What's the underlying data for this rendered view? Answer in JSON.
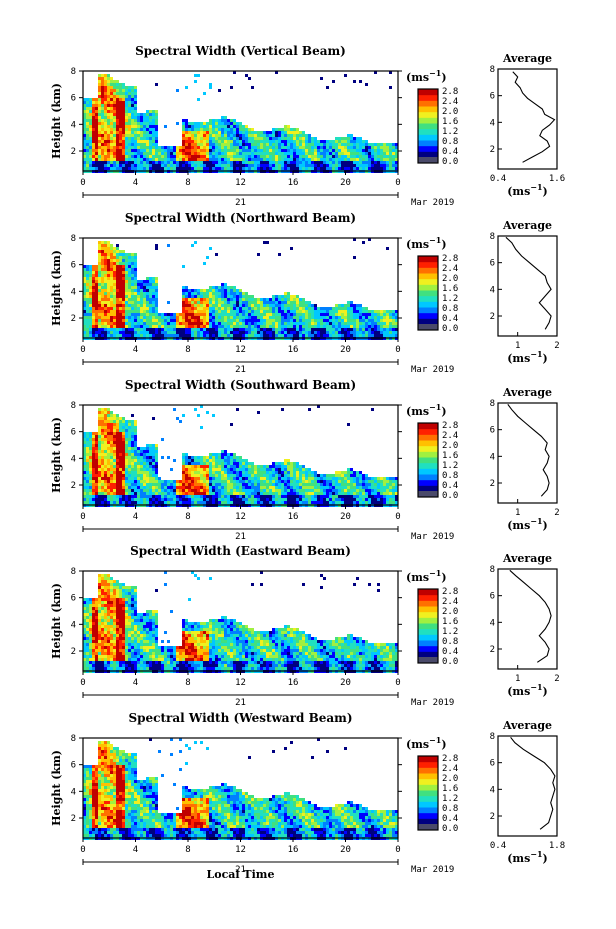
{
  "figure": {
    "xlabel": "Local Time",
    "date_label": "Mar 2019",
    "day_label": "21",
    "ylabel": "Height (km)",
    "colorbar_unit": "(ms",
    "colorbar_unit_exp": "−1",
    "colorbar_unit_close": ")",
    "profile_title": "Average",
    "profile_unit": "(ms",
    "profile_unit_exp": "−1",
    "profile_unit_close": ")",
    "colors": {
      "colormap": [
        "#000080",
        "#0000ff",
        "#0080ff",
        "#00c8ff",
        "#20e0c0",
        "#40e080",
        "#a0f040",
        "#f0f020",
        "#ffc000",
        "#ff7000",
        "#ff2000",
        "#c00000"
      ],
      "colorbar_underflow": "#4a4a6a"
    }
  },
  "chart_data": [
    {
      "type": "heatmap",
      "title": "Spectral Width (Vertical Beam)",
      "xlabel": "Local Time",
      "ylabel": "Height (km)",
      "xlim": [
        0,
        24
      ],
      "ylim": [
        0.5,
        8
      ],
      "xticks": [
        "0",
        "4",
        "8",
        "12",
        "16",
        "20",
        "0"
      ],
      "yticks": [
        "2",
        "4",
        "6",
        "8"
      ],
      "colorbar": {
        "range": [
          0,
          2.8
        ],
        "ticks": [
          "2.8",
          "2.4",
          "2.0",
          "1.6",
          "1.2",
          "0.8",
          "0.4",
          "0.0"
        ]
      },
      "profile": {
        "title": "Average",
        "xlim": [
          0.4,
          1.6
        ],
        "xticks": [
          "0.4",
          "1.6"
        ],
        "yticks": [
          "2",
          "4",
          "6",
          "8"
        ],
        "points": [
          [
            0.9,
            1.0
          ],
          [
            1.1,
            1.4
          ],
          [
            1.3,
            1.8
          ],
          [
            1.45,
            2.2
          ],
          [
            1.4,
            2.6
          ],
          [
            1.25,
            3.0
          ],
          [
            1.3,
            3.4
          ],
          [
            1.45,
            3.8
          ],
          [
            1.55,
            4.2
          ],
          [
            1.35,
            4.6
          ],
          [
            1.3,
            5.0
          ],
          [
            1.15,
            5.4
          ],
          [
            1.0,
            5.8
          ],
          [
            0.9,
            6.2
          ],
          [
            0.85,
            6.6
          ],
          [
            0.75,
            7.0
          ],
          [
            0.8,
            7.4
          ],
          [
            0.7,
            7.8
          ]
        ]
      }
    },
    {
      "type": "heatmap",
      "title": "Spectral Width (Northward Beam)",
      "xlabel": "Local Time",
      "ylabel": "Height (km)",
      "xlim": [
        0,
        24
      ],
      "ylim": [
        0.5,
        8
      ],
      "xticks": [
        "0",
        "4",
        "8",
        "12",
        "16",
        "20",
        "0"
      ],
      "yticks": [
        "2",
        "4",
        "6",
        "8"
      ],
      "colorbar": {
        "range": [
          0,
          2.8
        ],
        "ticks": [
          "2.8",
          "2.4",
          "2.0",
          "1.6",
          "1.2",
          "0.8",
          "0.4",
          "0.0"
        ]
      },
      "profile": {
        "title": "Average",
        "xlim": [
          0.5,
          2.0
        ],
        "xticks": [
          "1",
          "2"
        ],
        "yticks": [
          "2",
          "4",
          "6",
          "8"
        ],
        "points": [
          [
            1.7,
            1.0
          ],
          [
            1.8,
            1.5
          ],
          [
            1.85,
            2.0
          ],
          [
            1.7,
            2.5
          ],
          [
            1.55,
            3.0
          ],
          [
            1.7,
            3.5
          ],
          [
            1.85,
            4.0
          ],
          [
            1.75,
            4.5
          ],
          [
            1.7,
            5.0
          ],
          [
            1.5,
            5.5
          ],
          [
            1.3,
            6.0
          ],
          [
            1.1,
            6.5
          ],
          [
            0.95,
            7.0
          ],
          [
            0.85,
            7.5
          ],
          [
            0.7,
            7.9
          ]
        ]
      }
    },
    {
      "type": "heatmap",
      "title": "Spectral Width (Southward Beam)",
      "xlabel": "Local Time",
      "ylabel": "Height (km)",
      "xlim": [
        0,
        24
      ],
      "ylim": [
        0.5,
        8
      ],
      "xticks": [
        "0",
        "4",
        "8",
        "12",
        "16",
        "20",
        "0"
      ],
      "yticks": [
        "2",
        "4",
        "6",
        "8"
      ],
      "colorbar": {
        "range": [
          0,
          2.8
        ],
        "ticks": [
          "2.8",
          "2.4",
          "2.0",
          "1.6",
          "1.2",
          "0.8",
          "0.4",
          "0.0"
        ]
      },
      "profile": {
        "title": "Average",
        "xlim": [
          0.5,
          2.0
        ],
        "xticks": [
          "1",
          "2"
        ],
        "yticks": [
          "2",
          "4",
          "6",
          "8"
        ],
        "points": [
          [
            1.6,
            1.0
          ],
          [
            1.75,
            1.5
          ],
          [
            1.8,
            2.0
          ],
          [
            1.75,
            2.5
          ],
          [
            1.65,
            3.0
          ],
          [
            1.75,
            3.5
          ],
          [
            1.8,
            4.0
          ],
          [
            1.7,
            4.5
          ],
          [
            1.75,
            5.0
          ],
          [
            1.6,
            5.5
          ],
          [
            1.4,
            6.0
          ],
          [
            1.2,
            6.5
          ],
          [
            1.0,
            7.0
          ],
          [
            0.85,
            7.5
          ],
          [
            0.75,
            7.9
          ]
        ]
      }
    },
    {
      "type": "heatmap",
      "title": "Spectral Width (Eastward Beam)",
      "xlabel": "Local Time",
      "ylabel": "Height (km)",
      "xlim": [
        0,
        24
      ],
      "ylim": [
        0.5,
        8
      ],
      "xticks": [
        "0",
        "4",
        "8",
        "12",
        "16",
        "20",
        "0"
      ],
      "yticks": [
        "2",
        "4",
        "6",
        "8"
      ],
      "colorbar": {
        "range": [
          0,
          2.8
        ],
        "ticks": [
          "2.8",
          "2.4",
          "2.0",
          "1.6",
          "1.2",
          "0.8",
          "0.4",
          "0.0"
        ]
      },
      "profile": {
        "title": "Average",
        "xlim": [
          0.5,
          2.0
        ],
        "xticks": [
          "1",
          "2"
        ],
        "yticks": [
          "2",
          "4",
          "6",
          "8"
        ],
        "points": [
          [
            1.5,
            1.0
          ],
          [
            1.75,
            1.5
          ],
          [
            1.8,
            2.0
          ],
          [
            1.7,
            2.5
          ],
          [
            1.55,
            3.0
          ],
          [
            1.7,
            3.5
          ],
          [
            1.8,
            4.0
          ],
          [
            1.85,
            4.5
          ],
          [
            1.8,
            5.0
          ],
          [
            1.7,
            5.5
          ],
          [
            1.55,
            6.0
          ],
          [
            1.35,
            6.5
          ],
          [
            1.15,
            7.0
          ],
          [
            0.95,
            7.5
          ],
          [
            0.8,
            7.9
          ]
        ]
      }
    },
    {
      "type": "heatmap",
      "title": "Spectral Width (Westward Beam)",
      "xlabel": "Local Time",
      "ylabel": "Height (km)",
      "xlim": [
        0,
        24
      ],
      "ylim": [
        0.5,
        8
      ],
      "xticks": [
        "0",
        "4",
        "8",
        "12",
        "16",
        "20",
        "0"
      ],
      "yticks": [
        "2",
        "4",
        "6",
        "8"
      ],
      "colorbar": {
        "range": [
          0,
          2.8
        ],
        "ticks": [
          "2.8",
          "2.4",
          "2.0",
          "1.6",
          "1.2",
          "0.8",
          "0.4",
          "0.0"
        ]
      },
      "profile": {
        "title": "Average",
        "xlim": [
          0.4,
          1.8
        ],
        "xticks": [
          "0.4",
          "1.8"
        ],
        "yticks": [
          "2",
          "4",
          "6",
          "8"
        ],
        "points": [
          [
            1.4,
            1.0
          ],
          [
            1.6,
            1.5
          ],
          [
            1.65,
            2.0
          ],
          [
            1.7,
            2.5
          ],
          [
            1.65,
            3.0
          ],
          [
            1.7,
            3.5
          ],
          [
            1.75,
            4.0
          ],
          [
            1.7,
            4.5
          ],
          [
            1.75,
            5.0
          ],
          [
            1.65,
            5.5
          ],
          [
            1.5,
            6.0
          ],
          [
            1.25,
            6.5
          ],
          [
            1.0,
            7.0
          ],
          [
            0.8,
            7.5
          ],
          [
            0.7,
            7.9
          ]
        ]
      }
    }
  ]
}
